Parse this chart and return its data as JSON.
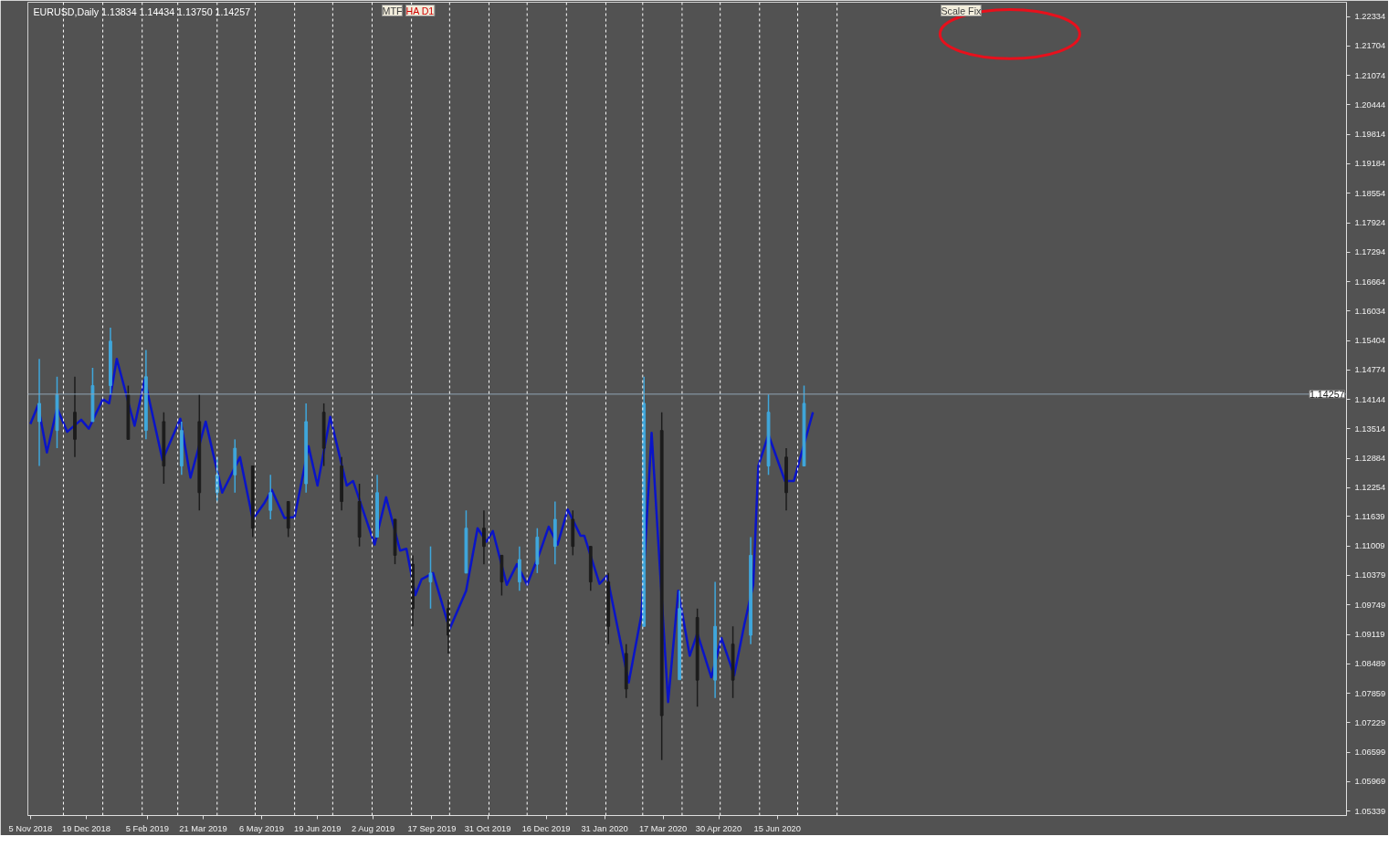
{
  "chart_data": {
    "type": "candlestick",
    "title": "EURUSD,Daily 1.13834 1.14434 1.13750 1.14257",
    "annotations": [
      "MTF",
      "HA D1",
      "Scale Fix"
    ],
    "x": [
      "2018-11-12",
      "2018-11-26",
      "2018-12-10",
      "2018-12-24",
      "2019-01-07",
      "2019-01-21",
      "2019-02-04",
      "2019-02-18",
      "2019-03-04",
      "2019-03-18",
      "2019-04-01",
      "2019-04-15",
      "2019-04-29",
      "2019-05-13",
      "2019-05-27",
      "2019-06-10",
      "2019-06-24",
      "2019-07-08",
      "2019-07-22",
      "2019-08-05",
      "2019-08-19",
      "2019-09-02",
      "2019-09-16",
      "2019-09-30",
      "2019-10-14",
      "2019-10-28",
      "2019-11-11",
      "2019-11-25",
      "2019-12-09",
      "2019-12-23",
      "2020-01-06",
      "2020-01-20",
      "2020-02-03",
      "2020-02-17",
      "2020-03-02",
      "2020-03-16",
      "2020-03-30",
      "2020-04-13",
      "2020-04-27",
      "2020-05-11",
      "2020-05-25",
      "2020-06-08",
      "2020-06-22",
      "2020-07-06"
    ],
    "ohlc": [
      [
        1.1367,
        1.1501,
        1.1272,
        1.1406
      ],
      [
        1.1348,
        1.1463,
        1.131,
        1.1425
      ],
      [
        1.1387,
        1.1463,
        1.1291,
        1.1329
      ],
      [
        1.1367,
        1.1482,
        1.1367,
        1.1444
      ],
      [
        1.1444,
        1.1568,
        1.1425,
        1.1539
      ],
      [
        1.1425,
        1.1444,
        1.1329,
        1.1329
      ],
      [
        1.1348,
        1.152,
        1.1329,
        1.1463
      ],
      [
        1.1367,
        1.1387,
        1.1234,
        1.1272
      ],
      [
        1.1272,
        1.1367,
        1.1253,
        1.1348
      ],
      [
        1.1367,
        1.1425,
        1.1177,
        1.1215
      ],
      [
        1.1215,
        1.1291,
        1.1196,
        1.1253
      ],
      [
        1.1253,
        1.1329,
        1.1215,
        1.131
      ],
      [
        1.1272,
        1.1272,
        1.112,
        1.1139
      ],
      [
        1.1177,
        1.1253,
        1.1158,
        1.1215
      ],
      [
        1.1196,
        1.1196,
        1.112,
        1.1139
      ],
      [
        1.1234,
        1.1406,
        1.1215,
        1.1367
      ],
      [
        1.1387,
        1.1406,
        1.1272,
        1.131
      ],
      [
        1.1272,
        1.1291,
        1.1177,
        1.1196
      ],
      [
        1.1196,
        1.1234,
        1.11,
        1.112
      ],
      [
        1.112,
        1.1253,
        1.112,
        1.1215
      ],
      [
        1.1158,
        1.1158,
        1.1062,
        1.1081
      ],
      [
        1.1062,
        1.1081,
        1.0929,
        1.0967
      ],
      [
        1.1024,
        1.11,
        1.0967,
        1.1043
      ],
      [
        1.0967,
        1.0986,
        1.0871,
        1.091
      ],
      [
        1.1043,
        1.1177,
        1.1043,
        1.1139
      ],
      [
        1.1139,
        1.1177,
        1.1062,
        1.11
      ],
      [
        1.1081,
        1.1081,
        1.0995,
        1.1024
      ],
      [
        1.1024,
        1.11,
        1.1005,
        1.1072
      ],
      [
        1.1062,
        1.1139,
        1.1043,
        1.112
      ],
      [
        1.11,
        1.1196,
        1.1062,
        1.1158
      ],
      [
        1.1158,
        1.1177,
        1.1081,
        1.11
      ],
      [
        1.11,
        1.11,
        1.1005,
        1.1024
      ],
      [
        1.1024,
        1.1043,
        1.0891,
        1.0929
      ],
      [
        1.0871,
        1.0891,
        1.0776,
        1.0795
      ],
      [
        1.0929,
        1.1463,
        1.0929,
        1.1406
      ],
      [
        1.1348,
        1.1387,
        1.0643,
        1.0738
      ],
      [
        1.0815,
        1.1005,
        1.0815,
        1.0967
      ],
      [
        1.0948,
        1.0967,
        1.0757,
        1.0814
      ],
      [
        1.0814,
        1.1024,
        1.0776,
        1.0929
      ],
      [
        1.0891,
        1.0929,
        1.0776,
        1.0814
      ],
      [
        1.091,
        1.112,
        1.0891,
        1.1081
      ],
      [
        1.1272,
        1.1425,
        1.1253,
        1.1387
      ],
      [
        1.1291,
        1.131,
        1.1177,
        1.1215
      ],
      [
        1.1272,
        1.1444,
        1.1272,
        1.1406
      ]
    ],
    "colors": [
      "#3fa7dc",
      "#3fa7dc",
      "#1c1c1c",
      "#3fa7dc",
      "#3fa7dc",
      "#1c1c1c",
      "#3fa7dc",
      "#1c1c1c",
      "#3fa7dc",
      "#1c1c1c",
      "#3fa7dc",
      "#3fa7dc",
      "#1c1c1c",
      "#3fa7dc",
      "#1c1c1c",
      "#3fa7dc",
      "#1c1c1c",
      "#1c1c1c",
      "#1c1c1c",
      "#3fa7dc",
      "#1c1c1c",
      "#1c1c1c",
      "#3fa7dc",
      "#1c1c1c",
      "#3fa7dc",
      "#1c1c1c",
      "#1c1c1c",
      "#3fa7dc",
      "#3fa7dc",
      "#3fa7dc",
      "#1c1c1c",
      "#1c1c1c",
      "#1c1c1c",
      "#1c1c1c",
      "#3fa7dc",
      "#1c1c1c",
      "#3fa7dc",
      "#1c1c1c",
      "#3fa7dc",
      "#1c1c1c",
      "#3fa7dc",
      "#3fa7dc",
      "#1c1c1c",
      "#3fa7dc"
    ],
    "series": [
      {
        "type": "line",
        "color": "#0a14c8",
        "x": [
          "2018-11-05",
          "2018-11-11",
          "2018-11-18",
          "2018-11-26",
          "2018-12-04",
          "2018-12-15",
          "2018-12-21",
          "2019-01-01",
          "2019-01-06",
          "2019-01-12",
          "2019-01-26",
          "2019-02-03",
          "2019-02-17",
          "2019-03-03",
          "2019-03-11",
          "2019-03-23",
          "2019-04-05",
          "2019-04-19",
          "2019-04-29",
          "2019-05-08",
          "2019-05-14",
          "2019-05-24",
          "2019-06-01",
          "2019-06-12",
          "2019-06-19",
          "2019-06-29",
          "2019-07-12",
          "2019-07-17",
          "2019-08-03",
          "2019-08-12",
          "2019-08-23",
          "2019-08-28",
          "2019-09-04",
          "2019-09-09",
          "2019-09-18",
          "2019-10-01",
          "2019-10-14",
          "2019-10-23",
          "2019-10-30",
          "2019-11-04",
          "2019-11-15",
          "2019-11-23",
          "2019-12-01",
          "2019-12-11",
          "2019-12-18",
          "2019-12-25",
          "2020-01-02",
          "2020-01-12",
          "2020-01-15",
          "2020-01-27",
          "2020-02-02",
          "2020-02-19",
          "2020-02-29",
          "2020-03-08",
          "2020-03-21",
          "2020-03-29",
          "2020-04-07",
          "2020-04-13",
          "2020-04-24",
          "2020-05-02",
          "2020-05-12",
          "2020-05-20",
          "2020-05-27",
          "2020-05-31",
          "2020-06-08",
          "2020-06-21",
          "2020-06-28",
          "2020-07-13"
        ],
        "values": [
          1.1362,
          1.1402,
          1.1301,
          1.1396,
          1.1345,
          1.1371,
          1.1352,
          1.1415,
          1.1406,
          1.1501,
          1.1358,
          1.1457,
          1.1285,
          1.1373,
          1.1247,
          1.1367,
          1.1215,
          1.1291,
          1.1158,
          1.1192,
          1.1221,
          1.1161,
          1.1163,
          1.1314,
          1.123,
          1.1377,
          1.123,
          1.124,
          1.1104,
          1.1205,
          1.1091,
          1.1095,
          1.0996,
          1.103,
          1.1043,
          1.0923,
          1.1005,
          1.1139,
          1.111,
          1.1133,
          1.1018,
          1.1062,
          1.1018,
          1.1087,
          1.1142,
          1.1104,
          1.1179,
          1.1123,
          1.1123,
          1.102,
          1.1037,
          1.0809,
          1.0954,
          1.1343,
          1.0767,
          1.1005,
          1.0866,
          1.0914,
          1.082,
          1.0904,
          1.0824,
          1.0933,
          1.1018,
          1.1272,
          1.1339,
          1.124,
          1.124,
          1.1387
        ]
      }
    ],
    "xlim": [
      "2018-11-03",
      "2021-09-06"
    ],
    "xticks": [
      {
        "value": "2018-11-05",
        "label": "5 Nov 2018"
      },
      {
        "value": "2018-12-19",
        "label": "19 Dec 2018"
      },
      {
        "value": "2019-02-05",
        "label": "5 Feb 2019"
      },
      {
        "value": "2019-03-21",
        "label": "21 Mar 2019"
      },
      {
        "value": "2019-05-06",
        "label": "6 May 2019"
      },
      {
        "value": "2019-06-19",
        "label": "19 Jun 2019"
      },
      {
        "value": "2019-08-02",
        "label": "2 Aug 2019"
      },
      {
        "value": "2019-09-17",
        "label": "17 Sep 2019"
      },
      {
        "value": "2019-10-31",
        "label": "31 Oct 2019"
      },
      {
        "value": "2019-12-16",
        "label": "16 Dec 2019"
      },
      {
        "value": "2020-01-31",
        "label": "31 Jan 2020"
      },
      {
        "value": "2020-03-17",
        "label": "17 Mar 2020"
      },
      {
        "value": "2020-04-30",
        "label": "30 Apr 2020"
      },
      {
        "value": "2020-06-15",
        "label": "15 Jun 2020"
      }
    ],
    "ylim": [
      1.05244,
      1.22639
    ],
    "yticks": [
      1.22334,
      1.21704,
      1.21074,
      1.20444,
      1.19814,
      1.19184,
      1.18554,
      1.17924,
      1.17294,
      1.16664,
      1.16034,
      1.15404,
      1.14774,
      1.14144,
      1.13514,
      1.12884,
      1.12254,
      1.11639,
      1.11009,
      1.10379,
      1.09749,
      1.09119,
      1.08489,
      1.07859,
      1.07229,
      1.06599,
      1.05969,
      1.05339
    ],
    "ref_lines": [
      {
        "axis": "y",
        "value": 1.14257,
        "label": "1.14257",
        "color": "#8fa3b3"
      },
      {
        "axis": "x",
        "value": "2018-12-01",
        "color": "#ffffff",
        "line_style": "dashed"
      },
      {
        "axis": "x",
        "value": "2019-01-01",
        "color": "#ffffff",
        "line_style": "dashed"
      },
      {
        "axis": "x",
        "value": "2019-02-01",
        "color": "#ffffff",
        "line_style": "dashed"
      },
      {
        "axis": "x",
        "value": "2019-03-01",
        "color": "#ffffff",
        "line_style": "dashed"
      },
      {
        "axis": "x",
        "value": "2019-04-01",
        "color": "#ffffff",
        "line_style": "dashed"
      },
      {
        "axis": "x",
        "value": "2019-05-01",
        "color": "#ffffff",
        "line_style": "dashed"
      },
      {
        "axis": "x",
        "value": "2019-06-01",
        "color": "#ffffff",
        "line_style": "dashed"
      },
      {
        "axis": "x",
        "value": "2019-07-01",
        "color": "#ffffff",
        "line_style": "dashed"
      },
      {
        "axis": "x",
        "value": "2019-08-01",
        "color": "#ffffff",
        "line_style": "dashed"
      },
      {
        "axis": "x",
        "value": "2019-09-01",
        "color": "#ffffff",
        "line_style": "dashed"
      },
      {
        "axis": "x",
        "value": "2019-10-01",
        "color": "#ffffff",
        "line_style": "dashed"
      },
      {
        "axis": "x",
        "value": "2019-11-01",
        "color": "#ffffff",
        "line_style": "dashed"
      },
      {
        "axis": "x",
        "value": "2019-12-01",
        "color": "#ffffff",
        "line_style": "dashed"
      },
      {
        "axis": "x",
        "value": "2020-01-01",
        "color": "#ffffff",
        "line_style": "dashed"
      },
      {
        "axis": "x",
        "value": "2020-02-01",
        "color": "#ffffff",
        "line_style": "dashed"
      },
      {
        "axis": "x",
        "value": "2020-03-01",
        "color": "#ffffff",
        "line_style": "dashed"
      },
      {
        "axis": "x",
        "value": "2020-04-01",
        "color": "#ffffff",
        "line_style": "dashed"
      },
      {
        "axis": "x",
        "value": "2020-05-01",
        "color": "#ffffff",
        "line_style": "dashed"
      },
      {
        "axis": "x",
        "value": "2020-06-01",
        "color": "#ffffff",
        "line_style": "dashed"
      },
      {
        "axis": "x",
        "value": "2020-07-01",
        "color": "#ffffff",
        "line_style": "dashed"
      },
      {
        "axis": "x",
        "value": "2020-08-01",
        "color": "#ffffff",
        "line_style": "dashed"
      }
    ]
  }
}
